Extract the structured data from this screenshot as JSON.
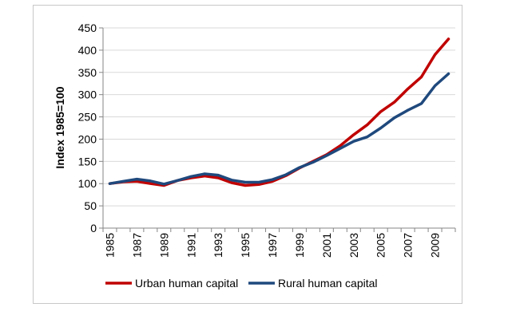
{
  "chart_data": {
    "type": "line",
    "title": "",
    "xlabel": "",
    "ylabel": "Index 1985=100",
    "x": [
      1985,
      1986,
      1987,
      1988,
      1989,
      1990,
      1991,
      1992,
      1993,
      1994,
      1995,
      1996,
      1997,
      1998,
      1999,
      2000,
      2001,
      2002,
      2003,
      2004,
      2005,
      2006,
      2007,
      2008,
      2009,
      2010
    ],
    "x_tick_labels": [
      "1985",
      "1987",
      "1989",
      "1991",
      "1993",
      "1995",
      "1997",
      "1999",
      "2001",
      "2003",
      "2005",
      "2007",
      "2009"
    ],
    "ylim": [
      0,
      450
    ],
    "y_ticks": [
      0,
      50,
      100,
      150,
      200,
      250,
      300,
      350,
      400,
      450
    ],
    "grid": "horizontal",
    "legend_position": "bottom",
    "series": [
      {
        "name": "Urban human capital",
        "color": "#c00000",
        "values": [
          100,
          104,
          105,
          100,
          96,
          107,
          113,
          117,
          113,
          102,
          96,
          98,
          105,
          118,
          135,
          150,
          165,
          185,
          210,
          232,
          262,
          283,
          313,
          340,
          390,
          425
        ]
      },
      {
        "name": "Rural human capital",
        "color": "#1f497d",
        "values": [
          100,
          105,
          110,
          106,
          99,
          107,
          116,
          122,
          119,
          108,
          103,
          103,
          109,
          120,
          136,
          148,
          163,
          179,
          195,
          205,
          225,
          248,
          265,
          280,
          320,
          347
        ]
      }
    ]
  }
}
